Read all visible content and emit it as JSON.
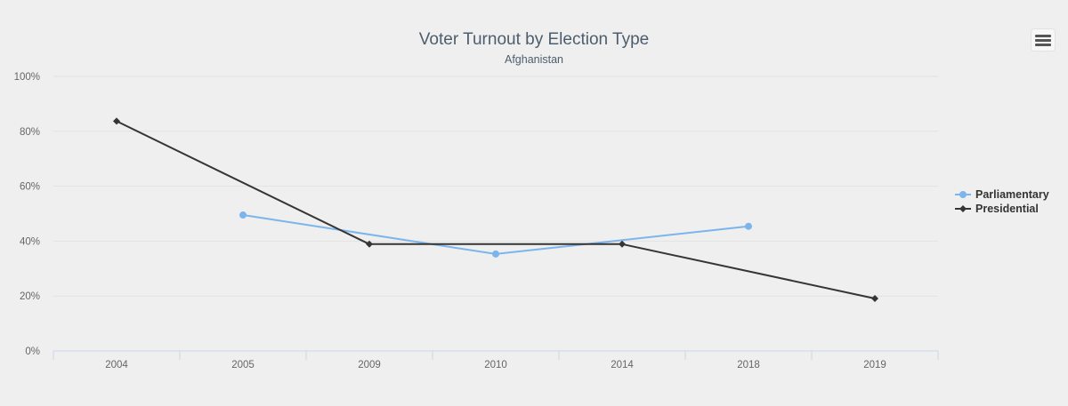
{
  "chart_data": {
    "type": "line",
    "title": "Voter Turnout by Election Type",
    "subtitle": "Afghanistan",
    "categories": [
      "2004",
      "2005",
      "2009",
      "2010",
      "2014",
      "2018",
      "2019"
    ],
    "ylim": [
      0,
      100
    ],
    "yticks": [
      0,
      20,
      40,
      60,
      80,
      100
    ],
    "ytick_labels": [
      "0%",
      "20%",
      "40%",
      "60%",
      "80%",
      "100%"
    ],
    "grid": true,
    "legend_position": "right",
    "series": [
      {
        "name": "Parliamentary",
        "color": "#7cb5ec",
        "marker": "circle",
        "values": [
          null,
          49.5,
          null,
          35.3,
          null,
          45.4,
          null
        ]
      },
      {
        "name": "Presidential",
        "color": "#353535",
        "marker": "diamond",
        "values": [
          83.7,
          null,
          38.9,
          null,
          38.9,
          null,
          19.1
        ]
      }
    ]
  },
  "toolbar": {
    "menu_icon": "hamburger-menu-icon"
  }
}
